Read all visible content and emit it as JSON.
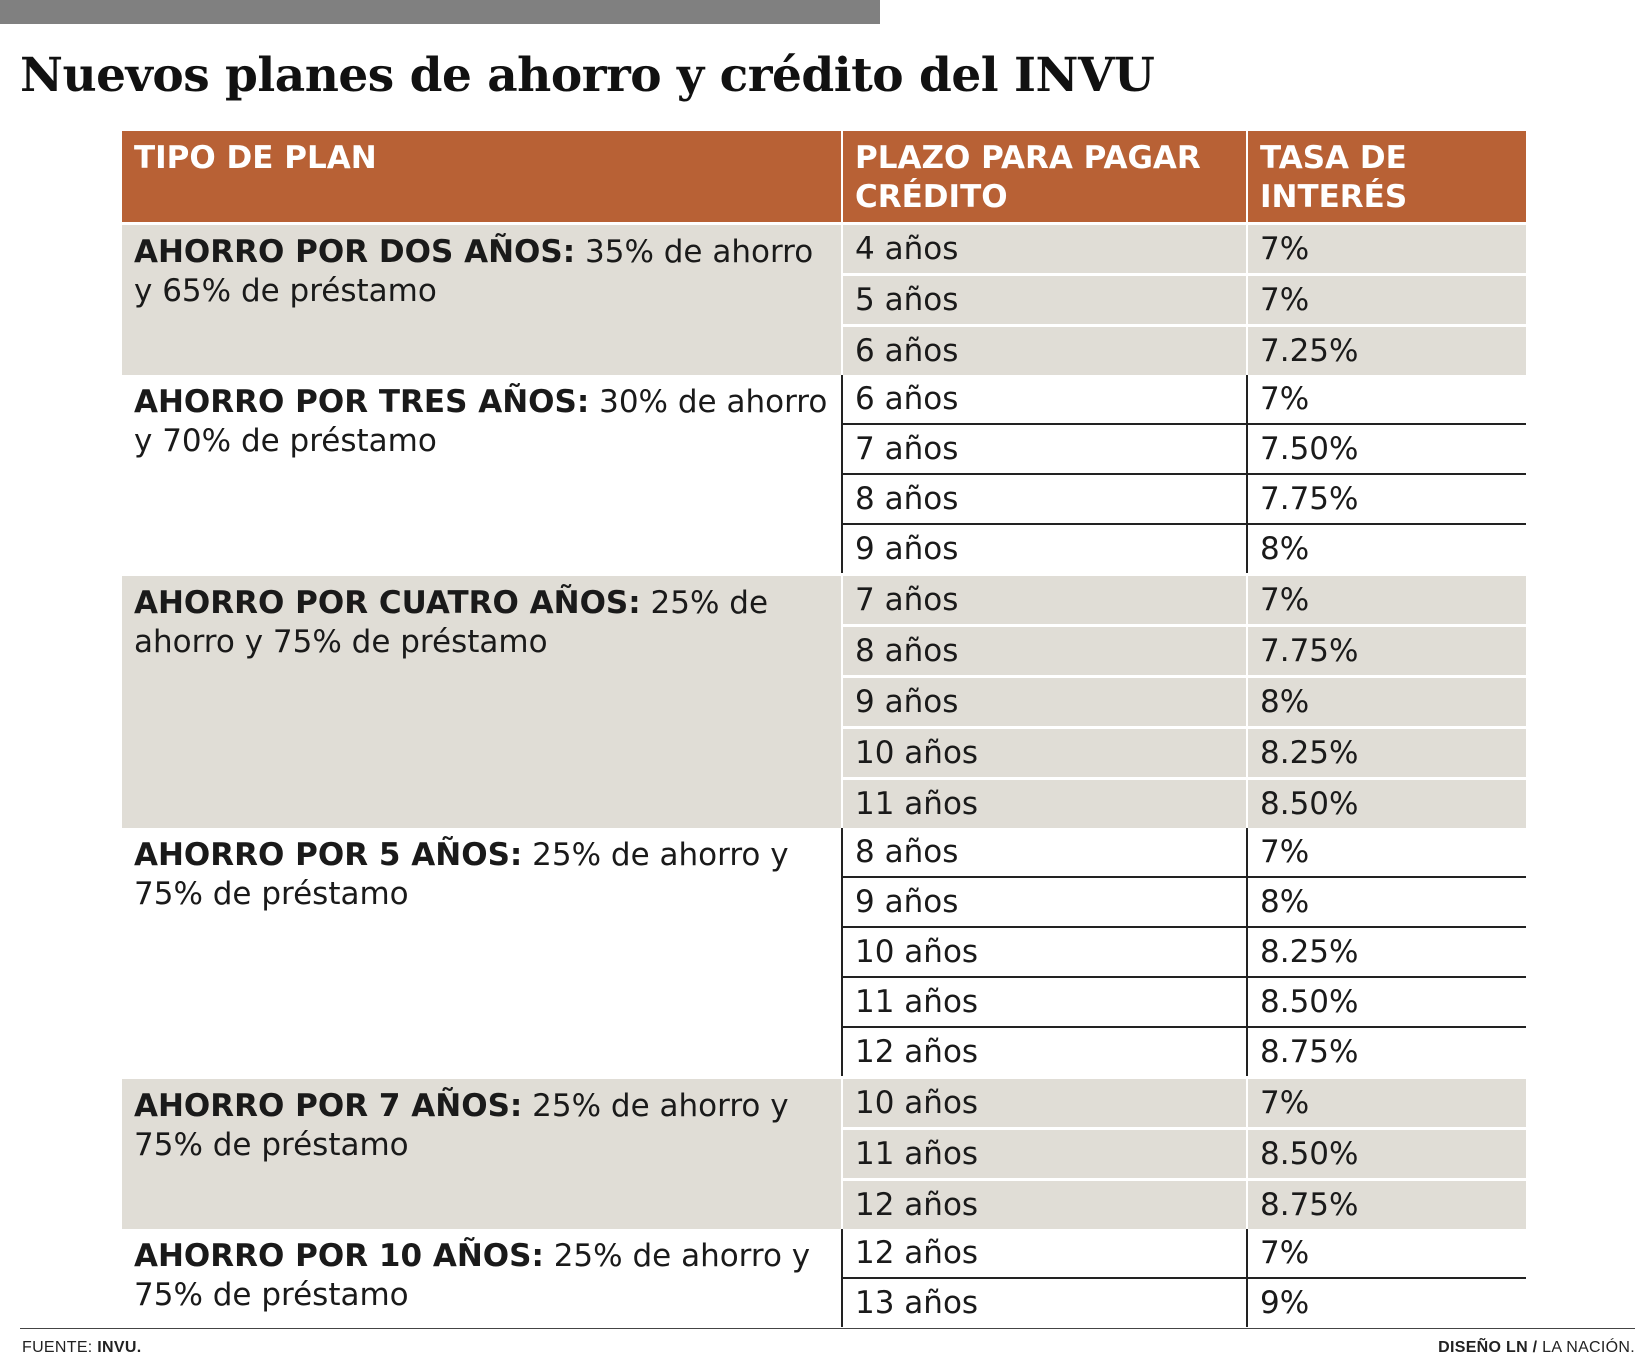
{
  "title": "Nuevos planes de ahorro y crédito del INVU",
  "table": {
    "headers": [
      "TIPO DE PLAN",
      "PLAZO PARA PAGAR CRÉDITO",
      "TASA DE INTERÉS"
    ],
    "plans": [
      {
        "name": "AHORRO POR DOS AÑOS:",
        "description": " 35% de ahorro y 65% de préstamo",
        "options": [
          {
            "term": "4 años",
            "rate": "7%"
          },
          {
            "term": "5 años",
            "rate": "7%"
          },
          {
            "term": "6 años",
            "rate": "7.25%"
          }
        ]
      },
      {
        "name": "AHORRO POR TRES AÑOS:",
        "description": " 30% de ahorro y 70% de préstamo",
        "options": [
          {
            "term": "6 años",
            "rate": "7%"
          },
          {
            "term": "7 años",
            "rate": "7.50%"
          },
          {
            "term": "8 años",
            "rate": "7.75%"
          },
          {
            "term": "9 años",
            "rate": "8%"
          }
        ]
      },
      {
        "name": "AHORRO POR CUATRO AÑOS:",
        "description": " 25% de ahorro y 75% de préstamo",
        "options": [
          {
            "term": "7 años",
            "rate": "7%"
          },
          {
            "term": "8 años",
            "rate": "7.75%"
          },
          {
            "term": "9 años",
            "rate": "8%"
          },
          {
            "term": "10 años",
            "rate": "8.25%"
          },
          {
            "term": "11 años",
            "rate": "8.50%"
          }
        ]
      },
      {
        "name": "AHORRO POR 5 AÑOS:",
        "description": " 25% de ahorro y 75% de préstamo",
        "options": [
          {
            "term": "8 años",
            "rate": "7%"
          },
          {
            "term": "9 años",
            "rate": "8%"
          },
          {
            "term": "10 años",
            "rate": "8.25%"
          },
          {
            "term": "11 años",
            "rate": "8.50%"
          },
          {
            "term": "12 años",
            "rate": "8.75%"
          }
        ]
      },
      {
        "name": "AHORRO POR 7 AÑOS:",
        "description": " 25% de ahorro y 75% de préstamo",
        "options": [
          {
            "term": "10 años",
            "rate": "7%"
          },
          {
            "term": "11 años",
            "rate": "8.50%"
          },
          {
            "term": "12 años",
            "rate": "8.75%"
          }
        ]
      },
      {
        "name": "AHORRO POR 10 AÑOS:",
        "description": " 25% de ahorro y 75% de préstamo",
        "options": [
          {
            "term": "12 años",
            "rate": "7%"
          },
          {
            "term": "13 años",
            "rate": "9%"
          }
        ]
      }
    ]
  },
  "footer": {
    "source_label": "FUENTE: ",
    "source_value": "INVU.",
    "credit_label": "DISEÑO LN /",
    "credit_value": " LA NACIÓN."
  },
  "colors": {
    "header_bg": "#b86135",
    "shaded_bg": "#e0ddd6",
    "top_bar": "#808080"
  }
}
